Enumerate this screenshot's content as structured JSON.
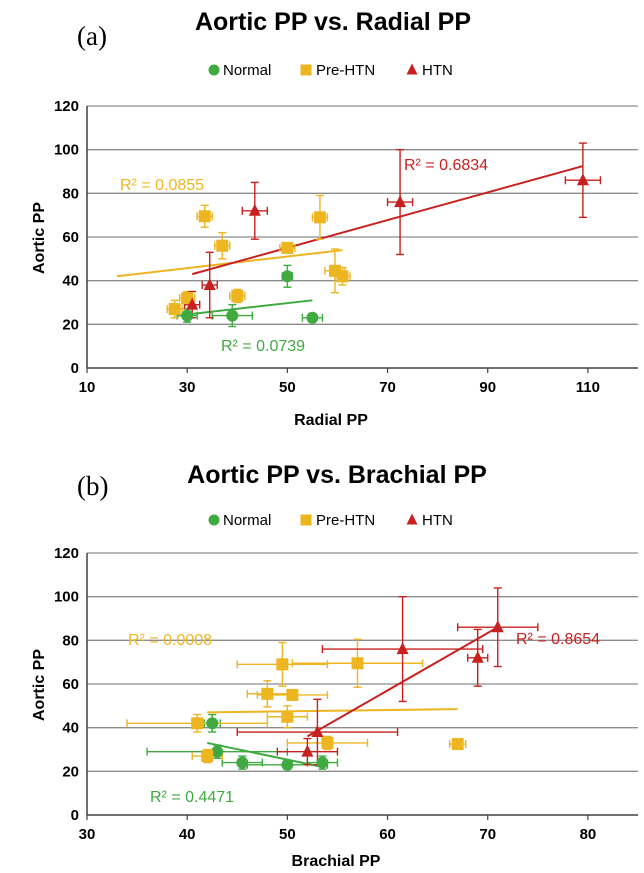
{
  "chart_data": [
    {
      "type": "scatter",
      "panel_label": "(a)",
      "title": "Aortic PP vs. Radial PP",
      "xlabel": "Radial PP",
      "ylabel": "Aortic PP",
      "xlim": [
        10,
        120
      ],
      "ylim": [
        0,
        120
      ],
      "xticks": [
        10,
        30,
        50,
        70,
        90,
        110
      ],
      "yticks": [
        0,
        20,
        40,
        60,
        80,
        100,
        120
      ],
      "grid": "horizontal",
      "legend": "top-center",
      "series": [
        {
          "name": "Normal",
          "color": "#3FAA3F",
          "marker": "circle",
          "points": [
            {
              "x": 30,
              "y": 24,
              "xerr": 2,
              "yerr": 3
            },
            {
              "x": 39,
              "y": 24,
              "xerr": 4,
              "yerr": 5
            },
            {
              "x": 50,
              "y": 42,
              "xerr": 1,
              "yerr": 5
            },
            {
              "x": 55,
              "y": 23,
              "xerr": 2,
              "yerr": 2
            }
          ],
          "trend": {
            "x": [
              28,
              55
            ],
            "y": [
              24,
              31
            ]
          },
          "r2": "R² = 0.0739"
        },
        {
          "name": "Pre-HTN",
          "color": "#EDB520",
          "marker": "square",
          "points": [
            {
              "x": 27.5,
              "y": 27,
              "xerr": 1.5,
              "yerr": 4
            },
            {
              "x": 30,
              "y": 32,
              "xerr": 1.5,
              "yerr": 3
            },
            {
              "x": 33.5,
              "y": 69.5,
              "xerr": 1.5,
              "yerr": 5
            },
            {
              "x": 37,
              "y": 56,
              "xerr": 1.5,
              "yerr": 6
            },
            {
              "x": 40,
              "y": 33,
              "xerr": 1.5,
              "yerr": 3
            },
            {
              "x": 50,
              "y": 55,
              "xerr": 1.5,
              "yerr": 2
            },
            {
              "x": 56.5,
              "y": 69,
              "xerr": 1.5,
              "yerr": 10
            },
            {
              "x": 59.5,
              "y": 44.5,
              "xerr": 2,
              "yerr": 10
            },
            {
              "x": 61,
              "y": 42,
              "xerr": 1.5,
              "yerr": 4
            }
          ],
          "trend": {
            "x": [
              16,
              61
            ],
            "y": [
              42,
              54
            ]
          },
          "r2": "R² = 0.0855"
        },
        {
          "name": "HTN",
          "color": "#C8201E",
          "marker": "triangle",
          "points": [
            {
              "x": 31,
              "y": 29,
              "xerr": 1.5,
              "yerr": 6
            },
            {
              "x": 34.5,
              "y": 38,
              "xerr": 1.5,
              "yerr": 15
            },
            {
              "x": 43.5,
              "y": 72,
              "xerr": 2.5,
              "yerr": 13
            },
            {
              "x": 72.5,
              "y": 76,
              "xerr": 2.5,
              "yerr": 24
            },
            {
              "x": 109,
              "y": 86,
              "xerr": 3.5,
              "yerr": 17
            }
          ],
          "trend": {
            "x": [
              31,
              109
            ],
            "y": [
              43,
              92.5
            ]
          },
          "r2": "R² = 0.6834"
        }
      ]
    },
    {
      "type": "scatter",
      "panel_label": "(b)",
      "title": "Aortic PP vs. Brachial PP",
      "xlabel": "Brachial PP",
      "ylabel": "Aortic PP",
      "xlim": [
        30,
        85
      ],
      "ylim": [
        0,
        120
      ],
      "xticks": [
        30,
        40,
        50,
        60,
        70,
        80
      ],
      "yticks": [
        0,
        20,
        40,
        60,
        80,
        100,
        120
      ],
      "grid": "horizontal",
      "legend": "top-center",
      "series": [
        {
          "name": "Normal",
          "color": "#3FAA3F",
          "marker": "circle",
          "points": [
            {
              "x": 42.5,
              "y": 42,
              "xerr": 0.8,
              "yerr": 4
            },
            {
              "x": 43,
              "y": 29,
              "xerr": 7,
              "yerr": 3
            },
            {
              "x": 45.5,
              "y": 24,
              "xerr": 2,
              "yerr": 3
            },
            {
              "x": 50,
              "y": 23,
              "xerr": 4,
              "yerr": 2
            },
            {
              "x": 53.5,
              "y": 24,
              "xerr": 1.5,
              "yerr": 3
            }
          ],
          "trend": {
            "x": [
              42,
              53.5
            ],
            "y": [
              33,
              22
            ]
          },
          "r2": "R² = 0.4471"
        },
        {
          "name": "Pre-HTN",
          "color": "#EDB520",
          "marker": "square",
          "points": [
            {
              "x": 41,
              "y": 42,
              "xerr": 7,
              "yerr": 4
            },
            {
              "x": 42,
              "y": 27,
              "xerr": 1.5,
              "yerr": 3
            },
            {
              "x": 48,
              "y": 55.5,
              "xerr": 2,
              "yerr": 6
            },
            {
              "x": 49.5,
              "y": 69,
              "xerr": 4.5,
              "yerr": 10
            },
            {
              "x": 50,
              "y": 45,
              "xerr": 2,
              "yerr": 5
            },
            {
              "x": 50.5,
              "y": 55,
              "xerr": 3.5,
              "yerr": 2
            },
            {
              "x": 54,
              "y": 33,
              "xerr": 4,
              "yerr": 3
            },
            {
              "x": 57,
              "y": 69.5,
              "xerr": 6.5,
              "yerr": 11
            },
            {
              "x": 67,
              "y": 32.5,
              "xerr": 0.8,
              "yerr": 2
            }
          ],
          "trend": {
            "x": [
              42,
              67
            ],
            "y": [
              47,
              48.5
            ]
          },
          "r2": "R² = 0.0008"
        },
        {
          "name": "HTN",
          "color": "#C8201E",
          "marker": "triangle",
          "points": [
            {
              "x": 52,
              "y": 29,
              "xerr": 3,
              "yerr": 6
            },
            {
              "x": 53,
              "y": 38,
              "xerr": 8,
              "yerr": 15
            },
            {
              "x": 61.5,
              "y": 76,
              "xerr": 8,
              "yerr": 24
            },
            {
              "x": 69,
              "y": 72,
              "xerr": 1,
              "yerr": 13
            },
            {
              "x": 71,
              "y": 86,
              "xerr": 4,
              "yerr": 18
            }
          ],
          "trend": {
            "x": [
              52,
              71
            ],
            "y": [
              36,
              86
            ]
          },
          "r2": "R² = 0.8654"
        }
      ]
    }
  ]
}
